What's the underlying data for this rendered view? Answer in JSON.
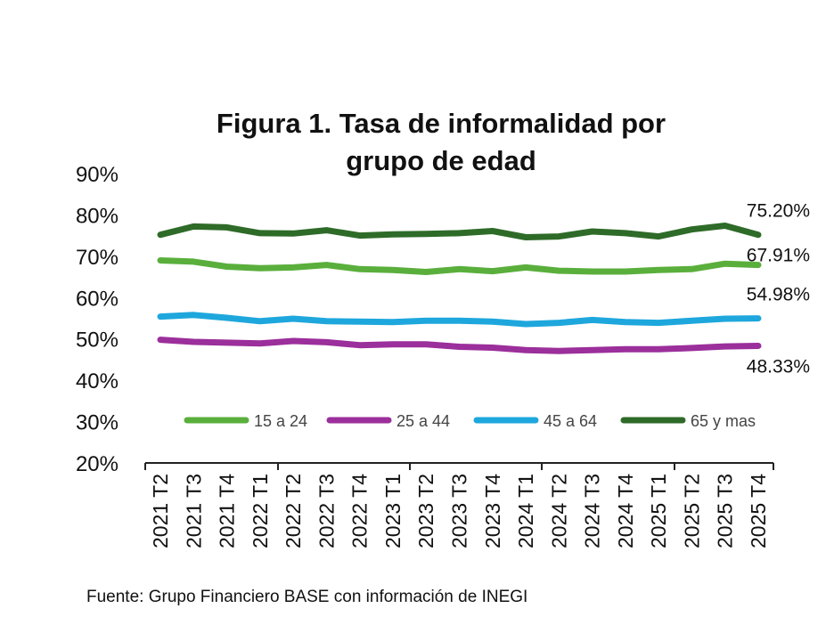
{
  "chart_data": {
    "type": "line",
    "title_line1": "Figura 1. Tasa de informalidad por",
    "title_line2": "grupo de edad",
    "source": "Fuente: Grupo Financiero BASE con información de INEGI",
    "ylim": [
      20,
      90
    ],
    "yticks": [
      "20%",
      "30%",
      "40%",
      "50%",
      "60%",
      "70%",
      "80%",
      "90%"
    ],
    "categories": [
      "2021 T2",
      "2021 T3",
      "2021 T4",
      "2022 T1",
      "2022 T2",
      "2022 T3",
      "2022 T4",
      "2023 T1",
      "2023 T2",
      "2023 T3",
      "2023 T4",
      "2024 T1",
      "2024 T2",
      "2024 T3",
      "2024 T4",
      "2025 T1",
      "2025 T2",
      "2025 T3",
      "2025 T4"
    ],
    "series": [
      {
        "name": "15 a 24",
        "color": "#5aaf3c",
        "values": [
          69.0,
          68.7,
          67.5,
          67.1,
          67.3,
          67.9,
          66.9,
          66.7,
          66.2,
          66.9,
          66.4,
          67.3,
          66.5,
          66.3,
          66.3,
          66.7,
          66.9,
          68.2,
          67.91
        ],
        "end_label": "67.91%"
      },
      {
        "name": "25 a 44",
        "color": "#9b2f9b",
        "values": [
          49.8,
          49.3,
          49.1,
          48.9,
          49.5,
          49.2,
          48.5,
          48.7,
          48.7,
          48.1,
          47.9,
          47.3,
          47.1,
          47.3,
          47.5,
          47.5,
          47.8,
          48.2,
          48.33
        ],
        "end_label": "48.33%"
      },
      {
        "name": "45 a 64",
        "color": "#1ea7dc",
        "values": [
          55.4,
          55.8,
          55.1,
          54.3,
          54.9,
          54.3,
          54.2,
          54.1,
          54.4,
          54.4,
          54.2,
          53.6,
          53.9,
          54.6,
          54.1,
          53.9,
          54.4,
          54.9,
          54.98
        ],
        "end_label": "54.98%"
      },
      {
        "name": "65 y mas",
        "color": "#2e6b28",
        "values": [
          75.2,
          77.2,
          77.0,
          75.6,
          75.5,
          76.3,
          75.0,
          75.3,
          75.4,
          75.6,
          76.1,
          74.6,
          74.8,
          76.0,
          75.6,
          74.8,
          76.5,
          77.4,
          75.2
        ],
        "end_label": "75.20%"
      }
    ],
    "legend_position": "bottom-inside",
    "grid": false
  }
}
